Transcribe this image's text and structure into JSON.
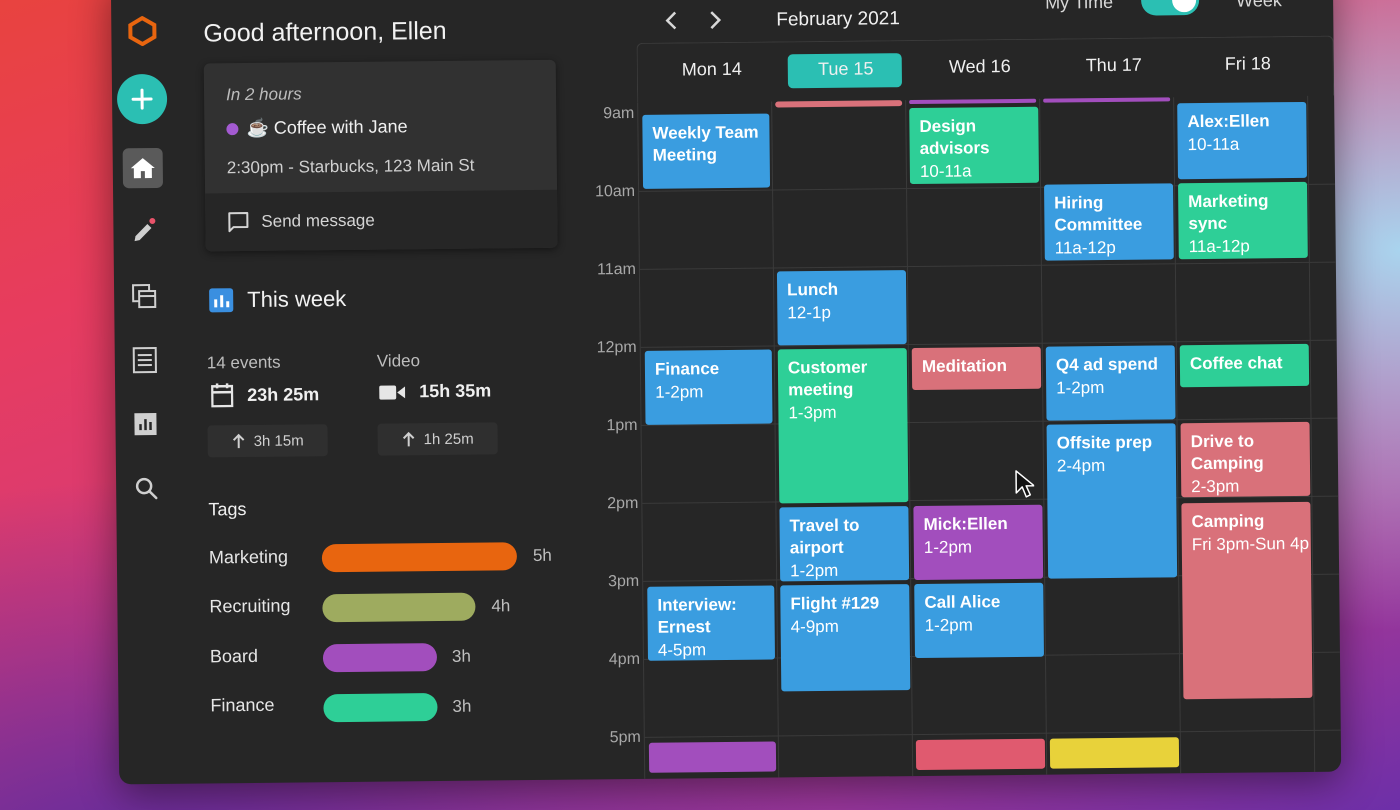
{
  "sidebar": {
    "greeting": "Good afternoon, Ellen",
    "upcoming": {
      "when": "In 2 hours",
      "title": "☕ Coffee with Jane",
      "dot_color": "#a35ad1",
      "detail": "2:30pm - Starbucks, 123 Main St",
      "message_label": "Send message"
    },
    "week": {
      "title": "This week",
      "events_label": "14 events",
      "events_time": "23h 25m",
      "events_delta": "3h 15m",
      "video_label": "Video",
      "video_time": "15h 35m",
      "video_delta": "1h 25m"
    },
    "tags": {
      "title": "Tags",
      "items": [
        {
          "label": "Marketing",
          "hours": "5h",
          "color": "#e8650f"
        },
        {
          "label": "Recruiting",
          "hours": "4h",
          "color": "#9eab5f"
        },
        {
          "label": "Board",
          "hours": "3h",
          "color": "#a24ebd"
        },
        {
          "label": "Finance",
          "hours": "3h",
          "color": "#2ecf97"
        }
      ]
    }
  },
  "calendar": {
    "month": "February 2021",
    "mytime_label": "My Time",
    "mytime_on": true,
    "view": "Week",
    "days": [
      "Mon 14",
      "Tue 15",
      "Wed 16",
      "Thu 17",
      "Fri 18"
    ],
    "today_index": 1,
    "times": [
      "9am",
      "10am",
      "11am",
      "12pm",
      "1pm",
      "2pm",
      "3pm",
      "4pm",
      "5pm"
    ],
    "events": [
      {
        "title": "Weekly Team Meeting",
        "time": "",
        "color": "blue"
      },
      {
        "title": "Finance",
        "time": "1-2pm",
        "color": "blue"
      },
      {
        "title": "Interview: Ernest",
        "time": "4-5pm",
        "color": "blue"
      },
      {
        "title": "Lunch",
        "time": "12-1p",
        "color": "blue"
      },
      {
        "title": "Customer meeting",
        "time": "1-3pm",
        "color": "green"
      },
      {
        "title": "Travel to airport",
        "time": "1-2pm",
        "color": "blue"
      },
      {
        "title": "Flight #129",
        "time": "4-9pm",
        "color": "blue"
      },
      {
        "title": "Design advisors",
        "time": "10-11a",
        "color": "green"
      },
      {
        "title": "Meditation",
        "time": "",
        "color": "salmon"
      },
      {
        "title": "Mick:Ellen",
        "time": "1-2pm",
        "color": "purple"
      },
      {
        "title": "Call Alice",
        "time": "1-2pm",
        "color": "blue"
      },
      {
        "title": "Hiring Committee",
        "time": "11a-12p",
        "color": "blue"
      },
      {
        "title": "Q4 ad spend",
        "time": "1-2pm",
        "color": "blue"
      },
      {
        "title": "Offsite prep",
        "time": "2-4pm",
        "color": "blue"
      },
      {
        "title": "Alex:Ellen",
        "time": "10-11a",
        "color": "blue"
      },
      {
        "title": "Marketing sync",
        "time": "11a-12p",
        "color": "green"
      },
      {
        "title": "Coffee chat",
        "time": "",
        "color": "green"
      },
      {
        "title": "Drive to Camping",
        "time": "2-3pm",
        "color": "salmon"
      },
      {
        "title": "Camping",
        "time": "Fri 3pm-Sun 4p",
        "color": "salmon"
      }
    ]
  }
}
